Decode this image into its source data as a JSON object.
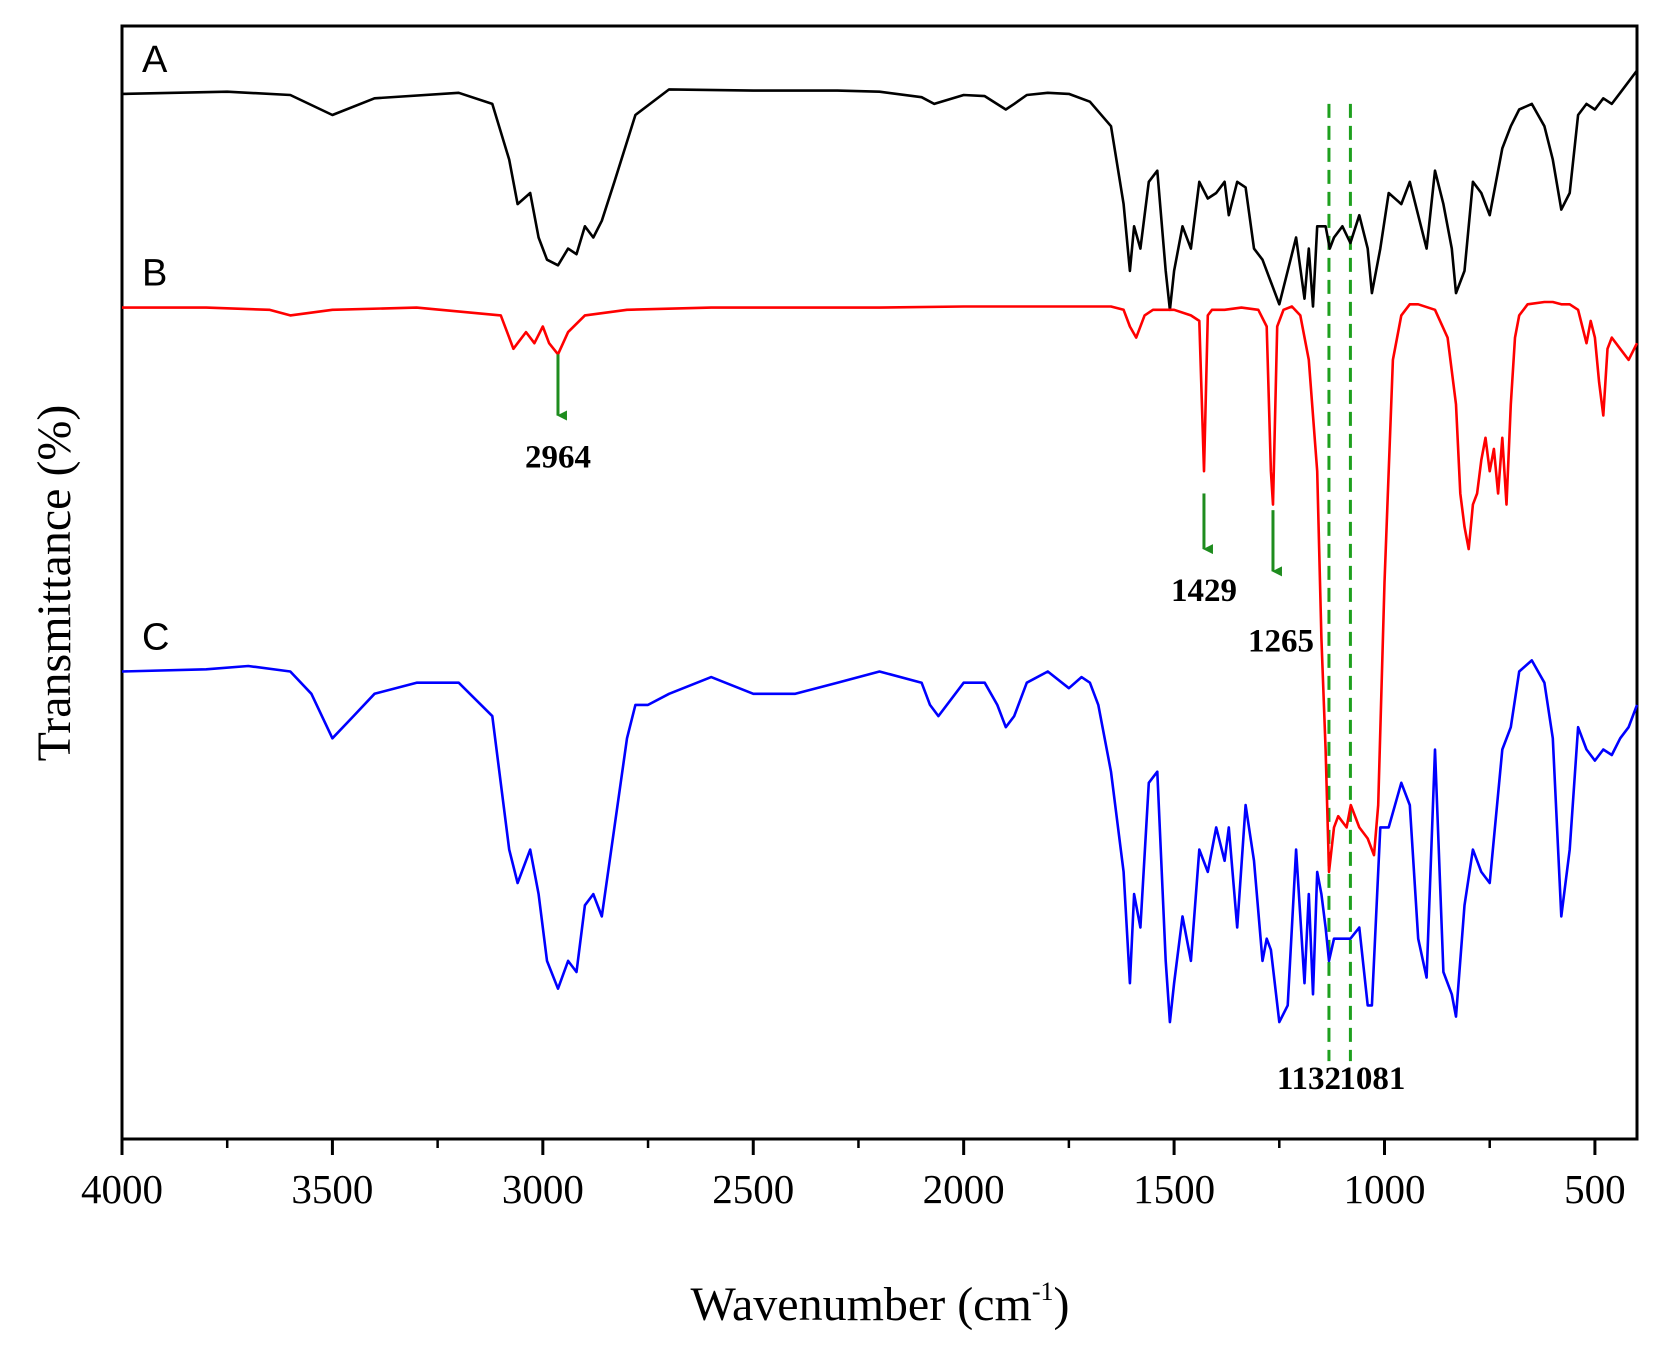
{
  "chart_data": {
    "type": "line",
    "title": "",
    "xlabel_main": "Wavenumber (cm",
    "xlabel_sup": "-1",
    "xlabel_close": ")",
    "ylabel": "Transmittance (%)",
    "xlim": [
      4000,
      400
    ],
    "x_reversed": true,
    "ylim": [
      0,
      100
    ],
    "x_ticks": [
      4000,
      3500,
      3000,
      2500,
      2000,
      1500,
      1000,
      500
    ],
    "x_tick_labels": [
      "4000",
      "3500",
      "3000",
      "2500",
      "2000",
      "1500",
      "1000",
      "500"
    ],
    "grid": false,
    "legend": "none",
    "series": [
      {
        "name": "A",
        "label": "A",
        "color": "#000000",
        "x": [
          4000,
          3750,
          3600,
          3500,
          3400,
          3200,
          3120,
          3080,
          3060,
          3030,
          3010,
          2990,
          2964,
          2940,
          2920,
          2900,
          2880,
          2860,
          2830,
          2780,
          2700,
          2500,
          2300,
          2200,
          2100,
          2070,
          2000,
          1950,
          1900,
          1880,
          1850,
          1800,
          1750,
          1700,
          1650,
          1620,
          1605,
          1595,
          1580,
          1560,
          1540,
          1520,
          1510,
          1500,
          1480,
          1460,
          1440,
          1420,
          1400,
          1380,
          1370,
          1350,
          1330,
          1310,
          1290,
          1270,
          1250,
          1230,
          1210,
          1190,
          1180,
          1170,
          1160,
          1140,
          1130,
          1120,
          1100,
          1081,
          1060,
          1040,
          1030,
          1010,
          990,
          960,
          940,
          920,
          900,
          880,
          860,
          840,
          830,
          810,
          790,
          770,
          750,
          720,
          700,
          680,
          650,
          620,
          600,
          580,
          560,
          540,
          520,
          500,
          480,
          460,
          440,
          420,
          400
        ],
        "y": [
          93.9,
          94.1,
          93.8,
          92.0,
          93.5,
          94.0,
          93.0,
          88.0,
          84.0,
          85.0,
          81.0,
          79.0,
          78.5,
          80.0,
          79.5,
          82.0,
          81.0,
          82.5,
          86.0,
          92.0,
          94.3,
          94.2,
          94.2,
          94.1,
          93.6,
          93.0,
          93.8,
          93.7,
          92.5,
          93.0,
          93.8,
          94.0,
          93.9,
          93.2,
          91.0,
          84.0,
          78.0,
          82.0,
          80.0,
          86.0,
          87.0,
          78.0,
          74.5,
          78.0,
          82.0,
          80.0,
          86.0,
          84.5,
          85.0,
          86.0,
          83.0,
          86.0,
          85.5,
          80.0,
          79.0,
          77.0,
          75.0,
          78.0,
          81.0,
          75.5,
          80.0,
          74.8,
          82.0,
          82.0,
          80.0,
          81.0,
          82.0,
          80.5,
          83.0,
          80.0,
          76.0,
          80.0,
          85.0,
          84.0,
          86.0,
          83.0,
          80.0,
          87.0,
          84.0,
          80.0,
          76.0,
          78.0,
          86.0,
          85.0,
          83.0,
          89.0,
          91.0,
          92.5,
          93.0,
          91.0,
          88.0,
          83.5,
          85.0,
          92.0,
          93.0,
          92.5,
          93.5,
          93.0,
          94.0,
          95.0,
          96.0
        ]
      },
      {
        "name": "B",
        "label": "B",
        "color": "#ff0000",
        "x": [
          4000,
          3800,
          3650,
          3600,
          3500,
          3300,
          3100,
          3080,
          3070,
          3060,
          3040,
          3020,
          3000,
          2985,
          2964,
          2940,
          2900,
          2800,
          2600,
          2400,
          2200,
          2000,
          1800,
          1650,
          1620,
          1605,
          1590,
          1570,
          1550,
          1500,
          1460,
          1440,
          1429,
          1420,
          1410,
          1380,
          1340,
          1300,
          1280,
          1270,
          1265,
          1255,
          1240,
          1220,
          1200,
          1180,
          1160,
          1150,
          1140,
          1132,
          1120,
          1110,
          1100,
          1090,
          1080,
          1060,
          1040,
          1025,
          1015,
          1000,
          980,
          960,
          940,
          920,
          880,
          850,
          830,
          820,
          810,
          800,
          790,
          780,
          770,
          760,
          750,
          740,
          730,
          720,
          710,
          700,
          690,
          680,
          660,
          620,
          600,
          580,
          560,
          540,
          530,
          520,
          510,
          500,
          490,
          480,
          470,
          460,
          440,
          420,
          400
        ],
        "y": [
          74.7,
          74.7,
          74.5,
          74.0,
          74.5,
          74.7,
          74.0,
          72.0,
          71.0,
          71.5,
          72.5,
          71.5,
          73.0,
          71.5,
          70.5,
          72.5,
          74.0,
          74.5,
          74.7,
          74.7,
          74.7,
          74.8,
          74.8,
          74.8,
          74.5,
          73.0,
          72.0,
          74.0,
          74.5,
          74.5,
          74.0,
          73.5,
          60.0,
          74.0,
          74.5,
          74.5,
          74.7,
          74.5,
          73.0,
          60.0,
          57.0,
          73.0,
          74.5,
          74.8,
          74.0,
          70.0,
          60.0,
          45.0,
          35.0,
          24.0,
          28.0,
          29.0,
          28.5,
          28.0,
          30.0,
          28.0,
          27.0,
          25.5,
          30.0,
          50.0,
          70.0,
          74.0,
          75.0,
          75.0,
          74.5,
          72.0,
          66.0,
          58.0,
          55.0,
          53.0,
          57.0,
          58.0,
          61.0,
          63.0,
          60.0,
          62.0,
          58.0,
          63.0,
          57.0,
          66.0,
          72.0,
          74.0,
          75.0,
          75.2,
          75.2,
          75.0,
          75.0,
          74.5,
          73.0,
          71.5,
          73.5,
          72.0,
          68.0,
          65.0,
          71.0,
          72.0,
          71.0,
          70.0,
          71.5
        ]
      },
      {
        "name": "C",
        "label": "C",
        "color": "#0000ff",
        "x": [
          4000,
          3800,
          3700,
          3600,
          3550,
          3500,
          3450,
          3400,
          3300,
          3200,
          3120,
          3080,
          3060,
          3030,
          3010,
          2990,
          2964,
          2940,
          2920,
          2900,
          2880,
          2860,
          2830,
          2800,
          2780,
          2750,
          2700,
          2600,
          2500,
          2400,
          2300,
          2200,
          2100,
          2080,
          2060,
          2000,
          1950,
          1920,
          1900,
          1880,
          1850,
          1800,
          1750,
          1720,
          1700,
          1680,
          1650,
          1620,
          1605,
          1595,
          1580,
          1560,
          1540,
          1520,
          1510,
          1500,
          1480,
          1460,
          1440,
          1420,
          1400,
          1380,
          1370,
          1350,
          1330,
          1310,
          1290,
          1280,
          1270,
          1250,
          1230,
          1210,
          1190,
          1180,
          1170,
          1160,
          1150,
          1140,
          1132,
          1120,
          1100,
          1081,
          1060,
          1040,
          1030,
          1010,
          990,
          960,
          940,
          920,
          900,
          880,
          860,
          840,
          830,
          810,
          790,
          770,
          750,
          720,
          700,
          680,
          650,
          620,
          600,
          580,
          560,
          540,
          520,
          500,
          480,
          460,
          440,
          420,
          400
        ],
        "y": [
          42.0,
          42.2,
          42.5,
          42.0,
          40.0,
          36.0,
          38.0,
          40.0,
          41.0,
          41.0,
          38.0,
          26.0,
          23.0,
          26.0,
          22.0,
          16.0,
          13.5,
          16.0,
          15.0,
          21.0,
          22.0,
          20.0,
          28.0,
          36.0,
          39.0,
          39.0,
          40.0,
          41.5,
          40.0,
          40.0,
          41.0,
          42.0,
          41.0,
          39.0,
          38.0,
          41.0,
          41.0,
          39.0,
          37.0,
          38.0,
          41.0,
          42.0,
          40.5,
          41.5,
          41.0,
          39.0,
          33.0,
          24.0,
          14.0,
          22.0,
          19.0,
          32.0,
          33.0,
          16.0,
          10.5,
          14.0,
          20.0,
          16.0,
          26.0,
          24.0,
          28.0,
          25.0,
          28.0,
          19.0,
          30.0,
          25.0,
          16.0,
          18.0,
          17.0,
          10.5,
          12.0,
          26.0,
          14.0,
          22.0,
          13.0,
          24.0,
          22.0,
          19.0,
          16.0,
          18.0,
          18.0,
          18.0,
          19.0,
          12.0,
          12.0,
          28.0,
          28.0,
          32.0,
          30.0,
          18.0,
          14.5,
          35.0,
          15.0,
          13.0,
          11.0,
          21.0,
          26.0,
          24.0,
          23.0,
          35.0,
          37.0,
          42.0,
          43.0,
          41.0,
          36.0,
          20.0,
          26.0,
          37.0,
          35.0,
          34.0,
          35.0,
          34.5,
          36.0,
          37.0,
          39.0
        ]
      }
    ],
    "reference_lines": {
      "color": "#1ea01e",
      "style": "dashed",
      "x": [
        1132,
        1081
      ]
    },
    "annotations": [
      {
        "text": "2964",
        "x": 2964,
        "arrow_from_y": 70.5,
        "arrow_to_y": 65.0
      },
      {
        "text": "1429",
        "x": 1429,
        "arrow_from_y": 58.0,
        "arrow_to_y": 53.0
      },
      {
        "text": "1265",
        "x": 1265,
        "arrow_from_y": 56.5,
        "arrow_to_y": 51.0
      }
    ],
    "bottom_labels": [
      "1132",
      "1081"
    ]
  }
}
